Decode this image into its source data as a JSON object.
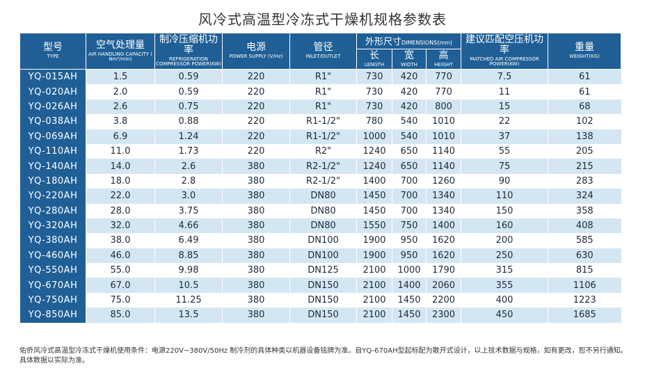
{
  "title": "风冷式高温型冷冻式干燥机规格参数表",
  "headers": {
    "type": {
      "zh": "型号",
      "en": "TYPE"
    },
    "capacity": {
      "zh": "空气处理量",
      "en": "AIR HANDLING CAPACITY ( Nm³/min)"
    },
    "refrigeration": {
      "zh": "制冷压缩机功率",
      "en": "REFRIGERATION COMPRESSOR POWER(KW)"
    },
    "power": {
      "zh": "电源",
      "en": "POWER SUPPLY (V/Hz)"
    },
    "pipe": {
      "zh": "管径",
      "en": "INLET/OUTLET"
    },
    "dimensions": {
      "zh": "外形尺寸",
      "en": "DIMENSIONS(mm)"
    },
    "length": {
      "zh": "长",
      "en": "LENGTH"
    },
    "width": {
      "zh": "宽",
      "en": "WIDTH"
    },
    "height": {
      "zh": "高",
      "en": "HEIGHT"
    },
    "matched": {
      "zh": "建议匹配空压机功率",
      "en": "MATCHED AIR COMPRESSOR POWER(KW)"
    },
    "weight": {
      "zh": "重量",
      "en": "WEIGHT(KG)"
    }
  },
  "rows": [
    [
      "YQ-015AH",
      "1.5",
      "0.59",
      "220",
      "R1\"",
      "730",
      "420",
      "770",
      "7.5",
      "61"
    ],
    [
      "YQ-020AH",
      "2.0",
      "0.59",
      "220",
      "R1\"",
      "730",
      "420",
      "770",
      "11",
      "61"
    ],
    [
      "YQ-026AH",
      "2.6",
      "0.75",
      "220",
      "R1\"",
      "730",
      "420",
      "800",
      "15",
      "68"
    ],
    [
      "YQ-038AH",
      "3.8",
      "0.88",
      "220",
      "R1-1/2\"",
      "780",
      "540",
      "1010",
      "22",
      "102"
    ],
    [
      "YQ-069AH",
      "6.9",
      "1.24",
      "220",
      "R1-1/2\"",
      "1000",
      "540",
      "1010",
      "37",
      "138"
    ],
    [
      "YQ-110AH",
      "11.0",
      "1.73",
      "220",
      "R2\"",
      "1240",
      "650",
      "1140",
      "55",
      "205"
    ],
    [
      "YQ-140AH",
      "14.0",
      "2.6",
      "380",
      "R2-1/2\"",
      "1240",
      "650",
      "1140",
      "75",
      "215"
    ],
    [
      "YQ-180AH",
      "18.0",
      "2.8",
      "380",
      "R2-1/2\"",
      "1400",
      "700",
      "1260",
      "90",
      "283"
    ],
    [
      "YQ-220AH",
      "22.0",
      "3.0",
      "380",
      "DN80",
      "1450",
      "700",
      "1340",
      "110",
      "324"
    ],
    [
      "YQ-280AH",
      "28.0",
      "3.75",
      "380",
      "DN80",
      "1450",
      "700",
      "1340",
      "150",
      "358"
    ],
    [
      "YQ-320AH",
      "32.0",
      "4.66",
      "380",
      "DN80",
      "1550",
      "750",
      "1400",
      "160",
      "408"
    ],
    [
      "YQ-380AH",
      "38.0",
      "6.49",
      "380",
      "DN100",
      "1900",
      "950",
      "1620",
      "200",
      "585"
    ],
    [
      "YQ-460AH",
      "46.0",
      "8.85",
      "380",
      "DN100",
      "1900",
      "950",
      "1620",
      "250",
      "630"
    ],
    [
      "YQ-550AH",
      "55.0",
      "9.98",
      "380",
      "DN125",
      "2100",
      "1000",
      "1790",
      "315",
      "815"
    ],
    [
      "YQ-670AH",
      "67.0",
      "10.5",
      "380",
      "DN150",
      "2100",
      "1400",
      "2060",
      "355",
      "1106"
    ],
    [
      "YQ-750AH",
      "75.0",
      "11.25",
      "380",
      "DN150",
      "2100",
      "1450",
      "2200",
      "400",
      "1223"
    ],
    [
      "YQ-850AH",
      "85.0",
      "13.5",
      "380",
      "DN150",
      "2100",
      "1450",
      "2300",
      "450",
      "1685"
    ]
  ],
  "footnote": "佑侨风冷式高温型冷冻式干燥机使用条件：电源220V~380V/50Hz 制冷剂的具体种类以机器设备铭牌为准。自YQ-670AH型起标配为散开式设计，以上技术数据与规格，如有更改，恕不另行通知。具体数据以实际为准。"
}
